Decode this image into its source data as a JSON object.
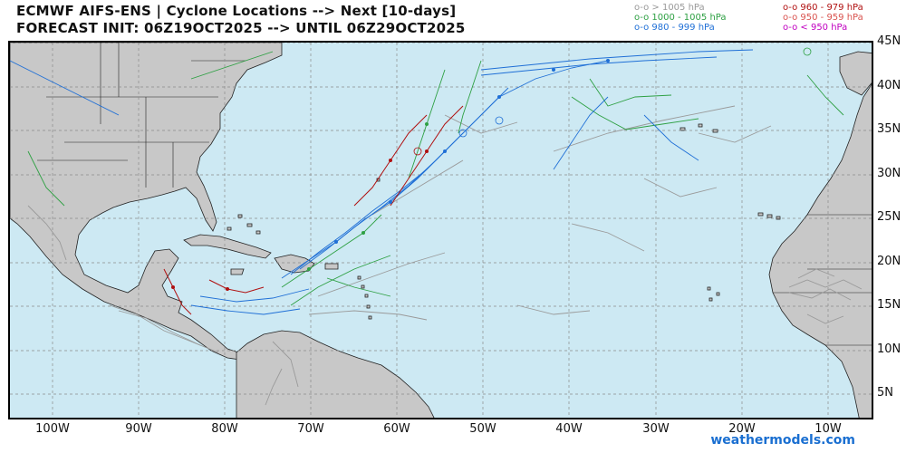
{
  "header": {
    "title_line1": "ECMWF AIFS-ENS | Cyclone Locations --> Next [10-days]",
    "title_line2": "FORECAST INIT: 06Z19OCT2025 --> UNTIL 06Z29OCT2025"
  },
  "legend": [
    {
      "text": "o-o > 1005 hPa",
      "color": "#9a9a9a"
    },
    {
      "text": "o-o 1000 - 1005 hPa",
      "color": "#2ea043"
    },
    {
      "text": "o-o 980 - 999 hPa",
      "color": "#1f6fd6"
    },
    {
      "text": "o-o 960 - 979 hPa",
      "color": "#b01010"
    },
    {
      "text": "o-o 950 - 959 hPa",
      "color": "#d9534f"
    },
    {
      "text": "o-o < 950 hPa",
      "color": "#c000c0"
    }
  ],
  "axes": {
    "lat_labels": [
      "45N",
      "40N",
      "35N",
      "30N",
      "25N",
      "20N",
      "15N",
      "10N",
      "5N"
    ],
    "lon_labels": [
      "100W",
      "90W",
      "80W",
      "70W",
      "60W",
      "50W",
      "40W",
      "30W",
      "20W",
      "10W"
    ]
  },
  "colors": {
    "ocean": "#cde9f3",
    "land": "#c8c8c8",
    "grid": "#8a8a8a"
  },
  "brand": "weathermodels.com"
}
